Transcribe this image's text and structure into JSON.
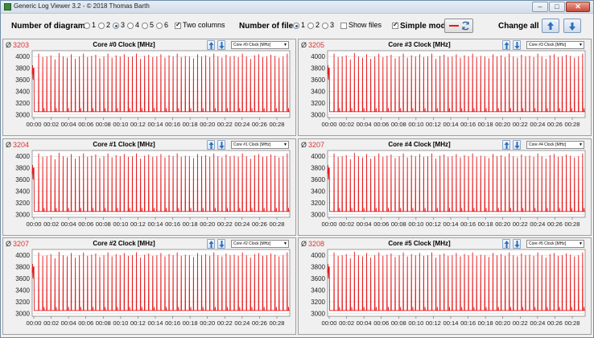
{
  "window": {
    "title": "Generic Log Viewer 3.2 - © 2018 Thomas Barth"
  },
  "toolbar": {
    "num_diagrams_label": "Number of diagrams",
    "diagram_options": [
      "1",
      "2",
      "3",
      "4",
      "5",
      "6"
    ],
    "diagram_selected": "3",
    "two_columns_label": "Two columns",
    "two_columns_checked": true,
    "num_files_label": "Number of files",
    "file_options": [
      "1",
      "2",
      "3"
    ],
    "file_selected": "1",
    "show_files_label": "Show files",
    "show_files_checked": false,
    "simple_mode_label": "Simple mode",
    "simple_mode_checked": true,
    "change_all_label": "Change all"
  },
  "panels": [
    {
      "title": "Core #0 Clock [MHz]",
      "avg": "3203",
      "combo": "Core #0 Clock [MHz]"
    },
    {
      "title": "Core #3 Clock [MHz]",
      "avg": "3205",
      "combo": "Core #3 Clock [MHz]"
    },
    {
      "title": "Core #1 Clock [MHz]",
      "avg": "3204",
      "combo": "Core #1 Clock [MHz]"
    },
    {
      "title": "Core #4 Clock [MHz]",
      "avg": "3207",
      "combo": "Core #4 Clock [MHz]"
    },
    {
      "title": "Core #2 Clock [MHz]",
      "avg": "3207",
      "combo": "Core #2 Clock [MHz]"
    },
    {
      "title": "Core #5 Clock [MHz]",
      "avg": "3208",
      "combo": "Core #5 Clock [MHz]"
    }
  ],
  "avg_symbol": "Ø",
  "colors": {
    "series": "#e8191b",
    "avg": "#d33333",
    "plot_bg": "#ffffff",
    "grid": "#d9d9d9"
  },
  "chart_data": {
    "type": "line",
    "series_name": "",
    "ylim": [
      2950,
      4100
    ],
    "yticks": [
      3000,
      3200,
      3400,
      3600,
      3800,
      4000
    ],
    "xticks": [
      "00:00",
      "00:02",
      "00:04",
      "00:06",
      "00:08",
      "00:10",
      "00:12",
      "00:14",
      "00:16",
      "00:18",
      "00:20",
      "00:22",
      "00:24",
      "00:26",
      "00:28"
    ],
    "x_range_seconds": [
      0,
      1770
    ],
    "baseline_mhz": 3050,
    "idle_segment_end_seconds": 35,
    "initial_values_mhz": [
      3700,
      3850,
      3600,
      3800
    ],
    "spike_peak_mhz": [
      4050,
      3990,
      4000,
      4020,
      3950,
      4060,
      4000,
      3980,
      4040,
      3960,
      4000,
      4050,
      3990,
      4010,
      4030,
      3970,
      4000,
      4050,
      3980,
      4020,
      4000,
      4040,
      3990,
      4000,
      4050,
      3960,
      4010,
      4030,
      3990,
      4000,
      4040,
      3980,
      4020,
      4000,
      4050,
      3990,
      4010,
      4000,
      3970,
      4040,
      4000,
      4020,
      3990,
      4050,
      4000,
      3980,
      4030,
      4000,
      4010,
      3990,
      4050,
      4000,
      3960,
      4020,
      4040,
      3990,
      4000,
      4030,
      4010,
      3980,
      4000,
      4050
    ],
    "spike_interval_seconds": 28
  }
}
